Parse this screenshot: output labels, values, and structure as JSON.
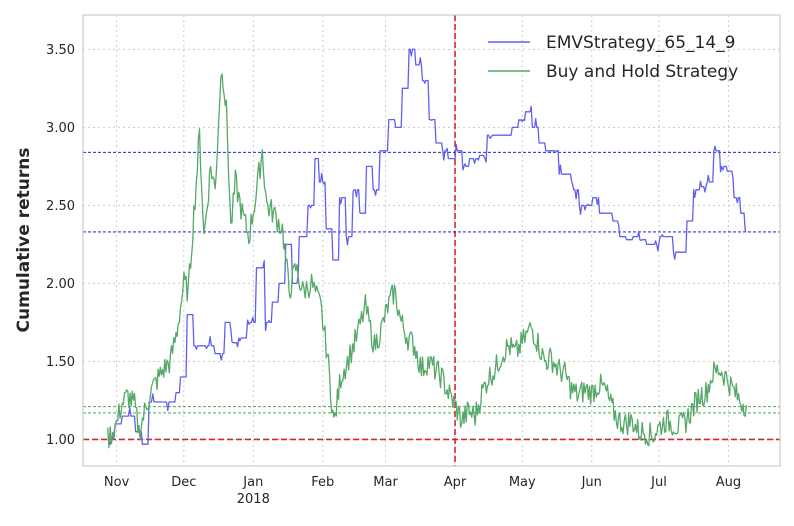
{
  "chart_data": {
    "type": "line",
    "title": "",
    "xlabel": "",
    "ylabel": "Cumulative returns",
    "ylim": [
      0.83,
      3.72
    ],
    "xlim": [
      "2017-10-17",
      "2018-08-24"
    ],
    "grid": true,
    "grid_style": "dotted",
    "legend_position": "top-right",
    "y_ticks": [
      {
        "value": 1.0,
        "label": "1.00"
      },
      {
        "value": 1.5,
        "label": "1.50"
      },
      {
        "value": 2.0,
        "label": "2.00"
      },
      {
        "value": 2.5,
        "label": "2.50"
      },
      {
        "value": 3.0,
        "label": "3.00"
      },
      {
        "value": 3.5,
        "label": "3.50"
      }
    ],
    "x_ticks": [
      {
        "date": "2017-11-01",
        "label": "Nov",
        "sublabel": ""
      },
      {
        "date": "2017-12-01",
        "label": "Dec",
        "sublabel": ""
      },
      {
        "date": "2018-01-01",
        "label": "Jan",
        "sublabel": "2018"
      },
      {
        "date": "2018-02-01",
        "label": "Feb",
        "sublabel": ""
      },
      {
        "date": "2018-03-01",
        "label": "Mar",
        "sublabel": ""
      },
      {
        "date": "2018-04-01",
        "label": "Apr",
        "sublabel": ""
      },
      {
        "date": "2018-05-01",
        "label": "May",
        "sublabel": ""
      },
      {
        "date": "2018-06-01",
        "label": "Jun",
        "sublabel": ""
      },
      {
        "date": "2018-07-01",
        "label": "Jul",
        "sublabel": ""
      },
      {
        "date": "2018-08-01",
        "label": "Aug",
        "sublabel": ""
      }
    ],
    "series": [
      {
        "name": "EMVStrategy_65_14_9",
        "color": "#6060f0",
        "points": [
          [
            "2017-10-28",
            1.0
          ],
          [
            "2017-11-01",
            1.1
          ],
          [
            "2017-11-04",
            1.15
          ],
          [
            "2017-11-08",
            1.15
          ],
          [
            "2017-11-10",
            1.05
          ],
          [
            "2017-11-13",
            0.97
          ],
          [
            "2017-11-16",
            1.24
          ],
          [
            "2017-11-20",
            1.24
          ],
          [
            "2017-11-26",
            1.24
          ],
          [
            "2017-11-28",
            1.3
          ],
          [
            "2017-11-30",
            1.4
          ],
          [
            "2017-12-03",
            1.8
          ],
          [
            "2017-12-06",
            1.6
          ],
          [
            "2017-12-10",
            1.6
          ],
          [
            "2017-12-16",
            1.55
          ],
          [
            "2017-12-20",
            1.75
          ],
          [
            "2017-12-23",
            1.62
          ],
          [
            "2017-12-26",
            1.65
          ],
          [
            "2017-12-30",
            1.75
          ],
          [
            "2018-01-03",
            2.1
          ],
          [
            "2018-01-07",
            1.75
          ],
          [
            "2018-01-10",
            1.88
          ],
          [
            "2018-01-13",
            2.0
          ],
          [
            "2018-01-16",
            2.25
          ],
          [
            "2018-01-19",
            2.0
          ],
          [
            "2018-01-22",
            2.3
          ],
          [
            "2018-01-26",
            2.5
          ],
          [
            "2018-01-29",
            2.8
          ],
          [
            "2018-01-31",
            2.65
          ],
          [
            "2018-02-03",
            2.35
          ],
          [
            "2018-02-06",
            2.15
          ],
          [
            "2018-02-09",
            2.55
          ],
          [
            "2018-02-12",
            2.3
          ],
          [
            "2018-02-15",
            2.6
          ],
          [
            "2018-02-18",
            2.45
          ],
          [
            "2018-02-21",
            2.75
          ],
          [
            "2018-02-24",
            2.6
          ],
          [
            "2018-02-27",
            2.85
          ],
          [
            "2018-03-03",
            3.05
          ],
          [
            "2018-03-06",
            3.0
          ],
          [
            "2018-03-09",
            3.25
          ],
          [
            "2018-03-12",
            3.5
          ],
          [
            "2018-03-15",
            3.4
          ],
          [
            "2018-03-18",
            3.3
          ],
          [
            "2018-03-21",
            3.05
          ],
          [
            "2018-03-24",
            2.9
          ],
          [
            "2018-03-27",
            2.85
          ],
          [
            "2018-03-30",
            2.8
          ],
          [
            "2018-04-02",
            2.85
          ],
          [
            "2018-04-05",
            2.75
          ],
          [
            "2018-04-08",
            2.8
          ],
          [
            "2018-04-12",
            2.82
          ],
          [
            "2018-04-16",
            2.95
          ],
          [
            "2018-04-20",
            2.95
          ],
          [
            "2018-04-24",
            2.95
          ],
          [
            "2018-04-27",
            3.0
          ],
          [
            "2018-04-30",
            3.05
          ],
          [
            "2018-05-03",
            3.1
          ],
          [
            "2018-05-06",
            3.0
          ],
          [
            "2018-05-09",
            2.9
          ],
          [
            "2018-05-12",
            2.85
          ],
          [
            "2018-05-15",
            2.85
          ],
          [
            "2018-05-18",
            2.7
          ],
          [
            "2018-05-21",
            2.7
          ],
          [
            "2018-05-24",
            2.6
          ],
          [
            "2018-05-27",
            2.5
          ],
          [
            "2018-05-30",
            2.5
          ],
          [
            "2018-06-02",
            2.55
          ],
          [
            "2018-06-05",
            2.45
          ],
          [
            "2018-06-08",
            2.45
          ],
          [
            "2018-06-11",
            2.4
          ],
          [
            "2018-06-14",
            2.3
          ],
          [
            "2018-06-17",
            2.28
          ],
          [
            "2018-06-20",
            2.3
          ],
          [
            "2018-06-23",
            2.28
          ],
          [
            "2018-06-26",
            2.25
          ],
          [
            "2018-06-29",
            2.25
          ],
          [
            "2018-07-02",
            2.3
          ],
          [
            "2018-07-05",
            2.3
          ],
          [
            "2018-07-08",
            2.2
          ],
          [
            "2018-07-11",
            2.2
          ],
          [
            "2018-07-14",
            2.4
          ],
          [
            "2018-07-17",
            2.6
          ],
          [
            "2018-07-20",
            2.62
          ],
          [
            "2018-07-23",
            2.65
          ],
          [
            "2018-07-26",
            2.85
          ],
          [
            "2018-07-29",
            2.75
          ],
          [
            "2018-08-01",
            2.72
          ],
          [
            "2018-08-04",
            2.55
          ],
          [
            "2018-08-07",
            2.45
          ],
          [
            "2018-08-09",
            2.33
          ]
        ]
      },
      {
        "name": "Buy and Hold Strategy",
        "color": "#55a868",
        "points": [
          [
            "2017-10-28",
            1.0
          ],
          [
            "2017-11-01",
            1.1
          ],
          [
            "2017-11-03",
            1.22
          ],
          [
            "2017-11-06",
            1.28
          ],
          [
            "2017-11-09",
            1.22
          ],
          [
            "2017-11-11",
            1.05
          ],
          [
            "2017-11-13",
            1.15
          ],
          [
            "2017-11-16",
            1.3
          ],
          [
            "2017-11-19",
            1.38
          ],
          [
            "2017-11-22",
            1.45
          ],
          [
            "2017-11-25",
            1.5
          ],
          [
            "2017-11-28",
            1.7
          ],
          [
            "2017-12-01",
            2.0
          ],
          [
            "2017-12-03",
            1.95
          ],
          [
            "2017-12-06",
            2.55
          ],
          [
            "2017-12-08",
            2.95
          ],
          [
            "2017-12-10",
            2.3
          ],
          [
            "2017-12-13",
            2.75
          ],
          [
            "2017-12-15",
            2.6
          ],
          [
            "2017-12-17",
            3.2
          ],
          [
            "2017-12-18",
            3.4
          ],
          [
            "2017-12-20",
            3.1
          ],
          [
            "2017-12-22",
            2.35
          ],
          [
            "2017-12-24",
            2.65
          ],
          [
            "2017-12-27",
            2.45
          ],
          [
            "2017-12-30",
            2.3
          ],
          [
            "2018-01-02",
            2.55
          ],
          [
            "2018-01-05",
            2.85
          ],
          [
            "2018-01-07",
            2.5
          ],
          [
            "2018-01-10",
            2.45
          ],
          [
            "2018-01-14",
            2.35
          ],
          [
            "2018-01-17",
            1.95
          ],
          [
            "2018-01-20",
            2.1
          ],
          [
            "2018-01-23",
            1.95
          ],
          [
            "2018-01-27",
            2.0
          ],
          [
            "2018-01-31",
            1.85
          ],
          [
            "2018-02-03",
            1.55
          ],
          [
            "2018-02-06",
            1.1
          ],
          [
            "2018-02-09",
            1.4
          ],
          [
            "2018-02-12",
            1.5
          ],
          [
            "2018-02-16",
            1.65
          ],
          [
            "2018-02-20",
            1.85
          ],
          [
            "2018-02-24",
            1.6
          ],
          [
            "2018-02-27",
            1.7
          ],
          [
            "2018-03-02",
            1.85
          ],
          [
            "2018-03-05",
            1.95
          ],
          [
            "2018-03-08",
            1.75
          ],
          [
            "2018-03-11",
            1.65
          ],
          [
            "2018-03-14",
            1.6
          ],
          [
            "2018-03-17",
            1.45
          ],
          [
            "2018-03-20",
            1.5
          ],
          [
            "2018-03-23",
            1.45
          ],
          [
            "2018-03-26",
            1.4
          ],
          [
            "2018-03-29",
            1.3
          ],
          [
            "2018-04-01",
            1.22
          ],
          [
            "2018-04-04",
            1.12
          ],
          [
            "2018-04-07",
            1.18
          ],
          [
            "2018-04-10",
            1.15
          ],
          [
            "2018-04-13",
            1.3
          ],
          [
            "2018-04-16",
            1.4
          ],
          [
            "2018-04-19",
            1.45
          ],
          [
            "2018-04-22",
            1.55
          ],
          [
            "2018-04-25",
            1.6
          ],
          [
            "2018-04-28",
            1.55
          ],
          [
            "2018-05-01",
            1.62
          ],
          [
            "2018-05-05",
            1.72
          ],
          [
            "2018-05-08",
            1.62
          ],
          [
            "2018-05-11",
            1.5
          ],
          [
            "2018-05-14",
            1.52
          ],
          [
            "2018-05-17",
            1.45
          ],
          [
            "2018-05-20",
            1.42
          ],
          [
            "2018-05-23",
            1.32
          ],
          [
            "2018-05-26",
            1.28
          ],
          [
            "2018-05-29",
            1.32
          ],
          [
            "2018-06-01",
            1.3
          ],
          [
            "2018-06-04",
            1.35
          ],
          [
            "2018-06-07",
            1.32
          ],
          [
            "2018-06-10",
            1.2
          ],
          [
            "2018-06-13",
            1.12
          ],
          [
            "2018-06-16",
            1.1
          ],
          [
            "2018-06-19",
            1.12
          ],
          [
            "2018-06-22",
            1.05
          ],
          [
            "2018-06-25",
            1.05
          ],
          [
            "2018-06-28",
            1.02
          ],
          [
            "2018-07-01",
            1.08
          ],
          [
            "2018-07-04",
            1.12
          ],
          [
            "2018-07-07",
            1.1
          ],
          [
            "2018-07-10",
            1.08
          ],
          [
            "2018-07-13",
            1.12
          ],
          [
            "2018-07-16",
            1.2
          ],
          [
            "2018-07-19",
            1.28
          ],
          [
            "2018-07-22",
            1.3
          ],
          [
            "2018-07-25",
            1.42
          ],
          [
            "2018-07-28",
            1.45
          ],
          [
            "2018-07-31",
            1.4
          ],
          [
            "2018-08-03",
            1.32
          ],
          [
            "2018-08-06",
            1.25
          ],
          [
            "2018-08-09",
            1.22
          ]
        ]
      }
    ],
    "reference_lines": [
      {
        "axis": "y",
        "value": 1.0,
        "color": "#d62728",
        "style": "dashed"
      },
      {
        "axis": "x",
        "value": "2018-04-01",
        "color": "#d62728",
        "style": "dashed"
      },
      {
        "axis": "y",
        "value": 2.84,
        "color": "#0000cc",
        "style": "dashed"
      },
      {
        "axis": "y",
        "value": 2.33,
        "color": "#0000cc",
        "style": "dashed"
      },
      {
        "axis": "y",
        "value": 1.21,
        "color": "#2ca02c",
        "style": "dashed"
      },
      {
        "axis": "y",
        "value": 1.17,
        "color": "#2ca02c",
        "style": "dashed"
      }
    ]
  }
}
